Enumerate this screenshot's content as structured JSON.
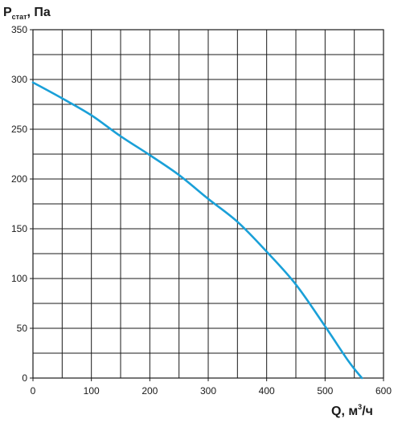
{
  "chart_data": {
    "type": "line",
    "ylabel": {
      "main": "P",
      "sub": "стат",
      "suffix": ", Па"
    },
    "xlabel": {
      "main": "Q, м",
      "sup": "3",
      "suffix": "/ч"
    },
    "xlim": [
      0,
      600
    ],
    "ylim": [
      0,
      350
    ],
    "x_ticks": [
      {
        "value": 0,
        "label": "0"
      },
      {
        "value": 100,
        "label": "100"
      },
      {
        "value": 200,
        "label": "200"
      },
      {
        "value": 300,
        "label": "300"
      },
      {
        "value": 400,
        "label": "400"
      },
      {
        "value": 500,
        "label": "500"
      },
      {
        "value": 600,
        "label": "600"
      }
    ],
    "y_ticks": [
      {
        "value": 0,
        "label": "0"
      },
      {
        "value": 50,
        "label": "50"
      },
      {
        "value": 100,
        "label": "100"
      },
      {
        "value": 150,
        "label": "150"
      },
      {
        "value": 200,
        "label": "200"
      },
      {
        "value": 250,
        "label": "250"
      },
      {
        "value": 300,
        "label": "300"
      },
      {
        "value": 350,
        "label": "350"
      }
    ],
    "grid": true,
    "series": [
      {
        "color": "#1aa0d8",
        "points": [
          {
            "x": 0,
            "y": 297
          },
          {
            "x": 50,
            "y": 281
          },
          {
            "x": 100,
            "y": 264
          },
          {
            "x": 150,
            "y": 243
          },
          {
            "x": 200,
            "y": 224
          },
          {
            "x": 250,
            "y": 204
          },
          {
            "x": 300,
            "y": 180
          },
          {
            "x": 350,
            "y": 157
          },
          {
            "x": 400,
            "y": 127
          },
          {
            "x": 450,
            "y": 94
          },
          {
            "x": 500,
            "y": 52
          },
          {
            "x": 540,
            "y": 17
          },
          {
            "x": 563,
            "y": 0
          }
        ]
      }
    ]
  },
  "colors": {
    "grid": "#1a1a1a",
    "curve": "#1aa0d8"
  }
}
